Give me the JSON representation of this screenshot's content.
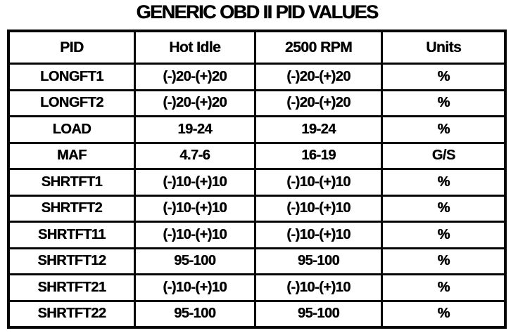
{
  "title": "GENERIC OBD II PID VALUES",
  "colors": {
    "background": "#ffffff",
    "text": "#000000",
    "border": "#050505"
  },
  "table": {
    "columns": [
      "PID",
      "Hot Idle",
      "2500 RPM",
      "Units"
    ],
    "rows": [
      [
        "LONGFT1",
        "(-)20-(+)20",
        "(-)20-(+)20",
        "%"
      ],
      [
        "LONGFT2",
        "(-)20-(+)20",
        "(-)20-(+)20",
        "%"
      ],
      [
        "LOAD",
        "19-24",
        "19-24",
        "%"
      ],
      [
        "MAF",
        "4.7-6",
        "16-19",
        "G/S"
      ],
      [
        "SHRTFT1",
        "(-)10-(+)10",
        "(-)10-(+)10",
        "%"
      ],
      [
        "SHRTFT2",
        "(-)10-(+)10",
        "(-)10-(+)10",
        "%"
      ],
      [
        "SHRTFT11",
        "(-)10-(+)10",
        "(-)10-(+)10",
        "%"
      ],
      [
        "SHRTFT12",
        "95-100",
        "95-100",
        "%"
      ],
      [
        "SHRTFT21",
        "(-)10-(+)10",
        "(-)10-(+)10",
        "%"
      ],
      [
        "SHRTFT22",
        "95-100",
        "95-100",
        "%"
      ]
    ]
  },
  "chart_data": {
    "type": "table",
    "title": "GENERIC OBD II PID VALUES",
    "columns": [
      "PID",
      "Hot Idle",
      "2500 RPM",
      "Units"
    ],
    "rows": [
      [
        "LONGFT1",
        "(-)20-(+)20",
        "(-)20-(+)20",
        "%"
      ],
      [
        "LONGFT2",
        "(-)20-(+)20",
        "(-)20-(+)20",
        "%"
      ],
      [
        "LOAD",
        "19-24",
        "19-24",
        "%"
      ],
      [
        "MAF",
        "4.7-6",
        "16-19",
        "G/S"
      ],
      [
        "SHRTFT1",
        "(-)10-(+)10",
        "(-)10-(+)10",
        "%"
      ],
      [
        "SHRTFT2",
        "(-)10-(+)10",
        "(-)10-(+)10",
        "%"
      ],
      [
        "SHRTFT11",
        "(-)10-(+)10",
        "(-)10-(+)10",
        "%"
      ],
      [
        "SHRTFT12",
        "95-100",
        "95-100",
        "%"
      ],
      [
        "SHRTFT21",
        "(-)10-(+)10",
        "(-)10-(+)10",
        "%"
      ],
      [
        "SHRTFT22",
        "95-100",
        "95-100",
        "%"
      ]
    ]
  }
}
